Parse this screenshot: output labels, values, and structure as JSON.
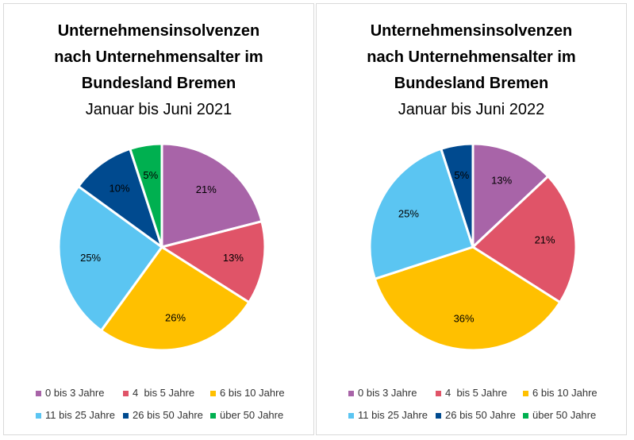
{
  "chart_data": [
    {
      "type": "pie",
      "title": "Unternehmensinsolvenzen nach Unternehmensalter im Bundesland Bremen",
      "title_lines": [
        "Unternehmensinsolvenzen",
        "nach Unternehmensalter im",
        "Bundesland Bremen"
      ],
      "subtitle": "Januar bis Juni 2021",
      "categories": [
        "0 bis 3 Jahre",
        "4  bis 5 Jahre",
        "6 bis 10 Jahre",
        "11 bis 25 Jahre",
        "26 bis 50 Jahre",
        "über 50 Jahre"
      ],
      "values": [
        21,
        13,
        26,
        25,
        10,
        5
      ],
      "data_labels": [
        "21%",
        "13%",
        "26%",
        "25%",
        "10%",
        "5%"
      ],
      "legend_position": "bottom"
    },
    {
      "type": "pie",
      "title": "Unternehmensinsolvenzen nach Unternehmensalter im Bundesland Bremen",
      "title_lines": [
        "Unternehmensinsolvenzen",
        "nach Unternehmensalter im",
        "Bundesland Bremen"
      ],
      "subtitle": "Januar bis Juni 2022",
      "categories": [
        "0 bis 3 Jahre",
        "4  bis 5 Jahre",
        "6 bis 10 Jahre",
        "11 bis 25 Jahre",
        "26 bis 50 Jahre",
        "über 50 Jahre"
      ],
      "values": [
        13,
        21,
        36,
        25,
        5,
        0
      ],
      "data_labels": [
        "13%",
        "21%",
        "36%",
        "25%",
        "5%",
        ""
      ],
      "legend_position": "bottom"
    }
  ],
  "colors": [
    "#a864a8",
    "#e05468",
    "#ffc000",
    "#5bc5f2",
    "#004a8f",
    "#00b050"
  ]
}
